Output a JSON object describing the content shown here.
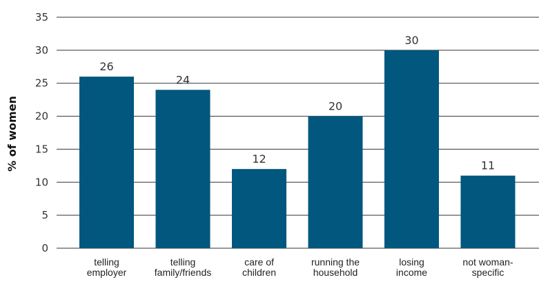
{
  "chart_data": {
    "type": "bar",
    "ylabel": "% of women",
    "categories": [
      [
        "telling",
        "employer"
      ],
      [
        "telling",
        "family/friends"
      ],
      [
        "care of",
        "children"
      ],
      [
        "running the",
        "household"
      ],
      [
        "losing",
        "income"
      ],
      [
        "not woman-",
        "specific"
      ]
    ],
    "values": [
      26,
      24,
      12,
      20,
      30,
      11
    ],
    "ylim": [
      0,
      35
    ],
    "yticks": [
      0,
      5,
      10,
      15,
      20,
      25,
      30,
      35
    ],
    "grid": true,
    "bar_color": "#02577e",
    "gridline_color": "#333333"
  }
}
